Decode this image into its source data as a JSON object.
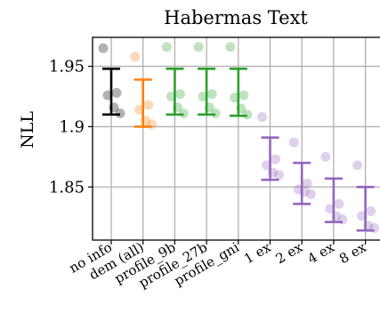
{
  "chart_data": {
    "type": "scatter",
    "title": "Habermas Text",
    "xlabel": "",
    "ylabel": "NLL",
    "categories": [
      "no info",
      "dem (all)",
      "profile_9b",
      "profile_27b",
      "profile_gni",
      "1 ex",
      "2 ex",
      "4 ex",
      "8 ex"
    ],
    "yticks": [
      1.85,
      1.9,
      1.95
    ],
    "ytick_labels": [
      "1.85",
      "1.9",
      "1.95"
    ],
    "ylim": [
      1.806,
      1.974
    ],
    "grid": true,
    "colors": [
      "#000000",
      "#ff7f0e",
      "#2ca02c",
      "#2ca02c",
      "#2ca02c",
      "#9467bd",
      "#9467bd",
      "#9467bd",
      "#9467bd"
    ],
    "series": [
      {
        "category": "no info",
        "mean": 1.929,
        "ci": [
          1.91,
          1.948
        ],
        "points": [
          1.965,
          1.928,
          1.926,
          1.916,
          1.911
        ]
      },
      {
        "category": "dem (all)",
        "mean": 1.919,
        "ci": [
          1.9,
          1.939
        ],
        "points": [
          1.958,
          1.918,
          1.914,
          1.905,
          1.902
        ]
      },
      {
        "category": "profile_9b",
        "mean": 1.929,
        "ci": [
          1.91,
          1.948
        ],
        "points": [
          1.966,
          1.927,
          1.925,
          1.916,
          1.911
        ]
      },
      {
        "category": "profile_27b",
        "mean": 1.929,
        "ci": [
          1.91,
          1.948
        ],
        "points": [
          1.966,
          1.927,
          1.925,
          1.916,
          1.911
        ]
      },
      {
        "category": "profile_gni",
        "mean": 1.928,
        "ci": [
          1.909,
          1.948
        ],
        "points": [
          1.966,
          1.926,
          1.924,
          1.915,
          1.91
        ]
      },
      {
        "category": "1 ex",
        "mean": 1.873,
        "ci": [
          1.856,
          1.891
        ],
        "points": [
          1.908,
          1.873,
          1.868,
          1.862,
          1.86
        ]
      },
      {
        "category": "2 ex",
        "mean": 1.853,
        "ci": [
          1.836,
          1.87
        ],
        "points": [
          1.887,
          1.853,
          1.848,
          1.846,
          1.844
        ]
      },
      {
        "category": "4 ex",
        "mean": 1.839,
        "ci": [
          1.821,
          1.857
        ],
        "points": [
          1.875,
          1.836,
          1.832,
          1.826,
          1.823
        ]
      },
      {
        "category": "8 ex",
        "mean": 1.832,
        "ci": [
          1.814,
          1.85
        ],
        "points": [
          1.868,
          1.83,
          1.826,
          1.818,
          1.816
        ]
      }
    ]
  }
}
